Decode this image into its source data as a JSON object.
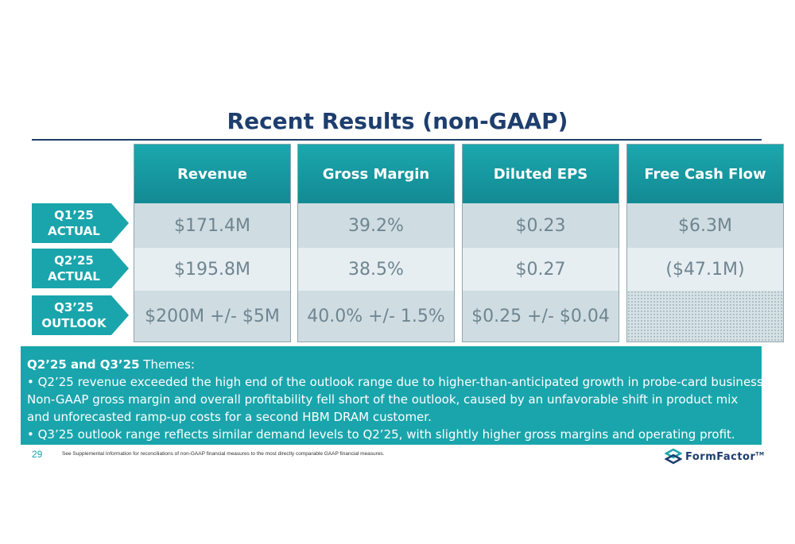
{
  "title": "Recent Results (non-GAAP)",
  "columns": [
    {
      "header": "Revenue",
      "q1": "$171.4M",
      "q2": "$195.8M",
      "q3": "$200M +/- $5M"
    },
    {
      "header": "Gross Margin",
      "q1": "39.2%",
      "q2": "38.5%",
      "q3": "40.0% +/- 1.5%"
    },
    {
      "header": "Diluted EPS",
      "q1": "$0.23",
      "q2": "$0.27",
      "q3": "$0.25 +/- $0.04"
    },
    {
      "header": "Free Cash Flow",
      "q1": "$6.3M",
      "q2": "($47.1M)",
      "q3": ""
    }
  ],
  "rows": [
    {
      "line1": "Q1’25",
      "line2": "ACTUAL"
    },
    {
      "line1": "Q2’25",
      "line2": "ACTUAL"
    },
    {
      "line1": "Q3’25",
      "line2": "OUTLOOK"
    }
  ],
  "themes": {
    "heading_bold": "Q2’25 and Q3’25",
    "heading_rest": " Themes:",
    "line1": "• Q2’25 revenue exceeded the high end of the outlook range due to higher-than-anticipated growth in probe-card business.",
    "line2": "Non-GAAP gross margin and overall profitability fell short of the outlook, caused by an unfavorable shift in product mix",
    "line3": "and unforecasted ramp-up costs for a second HBM DRAM customer.",
    "line4": "• Q3’25 outlook range reflects similar demand levels to Q2’25, with slightly higher gross margins and operating profit."
  },
  "footer": {
    "page_number": "29",
    "note": "See Supplemental Information for reconciliations of non-GAAP financial measures to the most directly comparable GAAP financial measures.",
    "logo_text": "FormFactor",
    "logo_tm": "TM"
  },
  "colors": {
    "navy": "#1d3e6e",
    "teal": "#1aa5ac",
    "cell_light": "#e6eef1",
    "cell_mid": "#cfdde2"
  }
}
